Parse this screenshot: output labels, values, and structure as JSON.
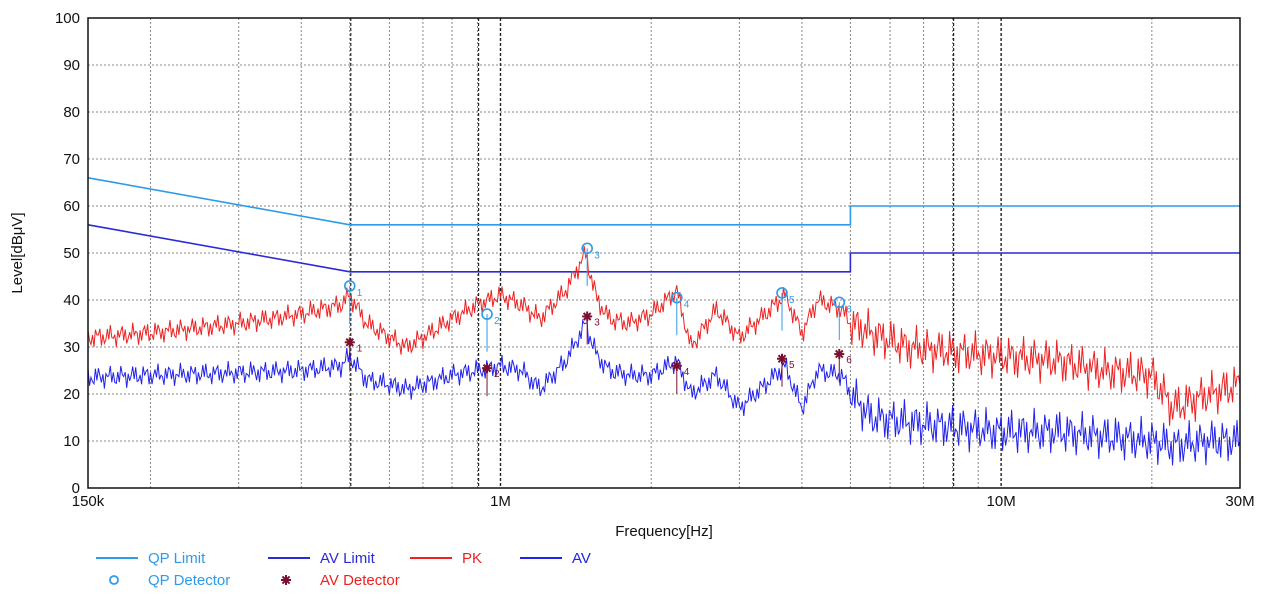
{
  "chart_data": {
    "type": "line",
    "title": "",
    "xlabel": "Frequency[Hz]",
    "ylabel": "Level[dBμV]",
    "x_scale": "log",
    "xlim": [
      150000,
      30000000
    ],
    "ylim": [
      0,
      100
    ],
    "grid": true,
    "y_ticks": [
      0,
      10,
      20,
      30,
      40,
      50,
      60,
      70,
      80,
      90,
      100
    ],
    "x_tick_labels": [
      {
        "value": 150000,
        "label": "150k"
      },
      {
        "value": 1000000,
        "label": "1M"
      },
      {
        "value": 10000000,
        "label": "10M"
      },
      {
        "value": 30000000,
        "label": "30M"
      }
    ],
    "legend_placement": "bottom-left",
    "series": [
      {
        "name": "QP Limit",
        "color": "#2e9be8",
        "kind": "line",
        "x": [
          150000,
          500000,
          500000,
          5000000,
          5000000,
          30000000
        ],
        "y": [
          66,
          56,
          56,
          56,
          60,
          60
        ]
      },
      {
        "name": "AV Limit",
        "color": "#2a2ad8",
        "kind": "line",
        "x": [
          150000,
          500000,
          500000,
          5000000,
          5000000,
          30000000
        ],
        "y": [
          56,
          46,
          46,
          46,
          50,
          50
        ]
      },
      {
        "name": "PK",
        "color": "#ee2222",
        "kind": "line",
        "x": [
          150000,
          200000,
          300000,
          400000,
          480000,
          500000,
          540000,
          600000,
          650000,
          700000,
          800000,
          900000,
          1000000,
          1100000,
          1200000,
          1350000,
          1480000,
          1500000,
          1560000,
          1650000,
          1800000,
          2000000,
          2250000,
          2400000,
          2700000,
          3000000,
          3300000,
          3700000,
          4000000,
          4300000,
          4800000,
          5000000,
          5500000,
          6500000,
          8000000,
          10000000,
          13000000,
          16000000,
          20000000,
          22000000,
          26000000,
          30000000
        ],
        "y": [
          32,
          33,
          35,
          37,
          39,
          41,
          35,
          32,
          30,
          32,
          36,
          39,
          41,
          39,
          36,
          42,
          50,
          47,
          40,
          36,
          35,
          37,
          42,
          30,
          38,
          32,
          36,
          41,
          33,
          40,
          38,
          35,
          33,
          30,
          29,
          28,
          27,
          25,
          24,
          17,
          20,
          22
        ]
      },
      {
        "name": "AV",
        "color": "#2222ee",
        "kind": "line",
        "x": [
          150000,
          200000,
          300000,
          400000,
          480000,
          500000,
          540000,
          600000,
          650000,
          700000,
          800000,
          900000,
          1000000,
          1100000,
          1200000,
          1350000,
          1480000,
          1500000,
          1560000,
          1650000,
          1800000,
          2000000,
          2250000,
          2400000,
          2700000,
          3000000,
          3300000,
          3700000,
          4000000,
          4300000,
          4800000,
          5000000,
          5500000,
          6500000,
          8000000,
          10000000,
          13000000,
          16000000,
          20000000,
          22000000,
          26000000,
          30000000
        ],
        "y": [
          23.5,
          24,
          24.5,
          25,
          26,
          28,
          23,
          22,
          21,
          22,
          24,
          25,
          26,
          25,
          21,
          27,
          35,
          33,
          28,
          25,
          24,
          24,
          27,
          20,
          24,
          17,
          21,
          26,
          17,
          25,
          24,
          20,
          15,
          14,
          13,
          12,
          12,
          11,
          10,
          9,
          10,
          10
        ]
      },
      {
        "name": "QP Detector",
        "color": "#2e9be8",
        "kind": "marker-circle",
        "x": [
          500000,
          940000,
          1490000,
          2250000,
          3650000,
          4750000
        ],
        "y": [
          43,
          37,
          51,
          40.5,
          41.5,
          39.5
        ],
        "labels": [
          "1",
          "2",
          "3",
          "4",
          "5",
          "6"
        ]
      },
      {
        "name": "AV Detector",
        "color": "#7a1030",
        "kind": "marker-star",
        "x": [
          500000,
          940000,
          1490000,
          2250000,
          3650000,
          4750000
        ],
        "y": [
          31,
          25.5,
          36.5,
          26,
          27.5,
          28.5
        ],
        "labels": [
          "1",
          "2",
          "3",
          "4",
          "5",
          "6"
        ]
      }
    ]
  }
}
